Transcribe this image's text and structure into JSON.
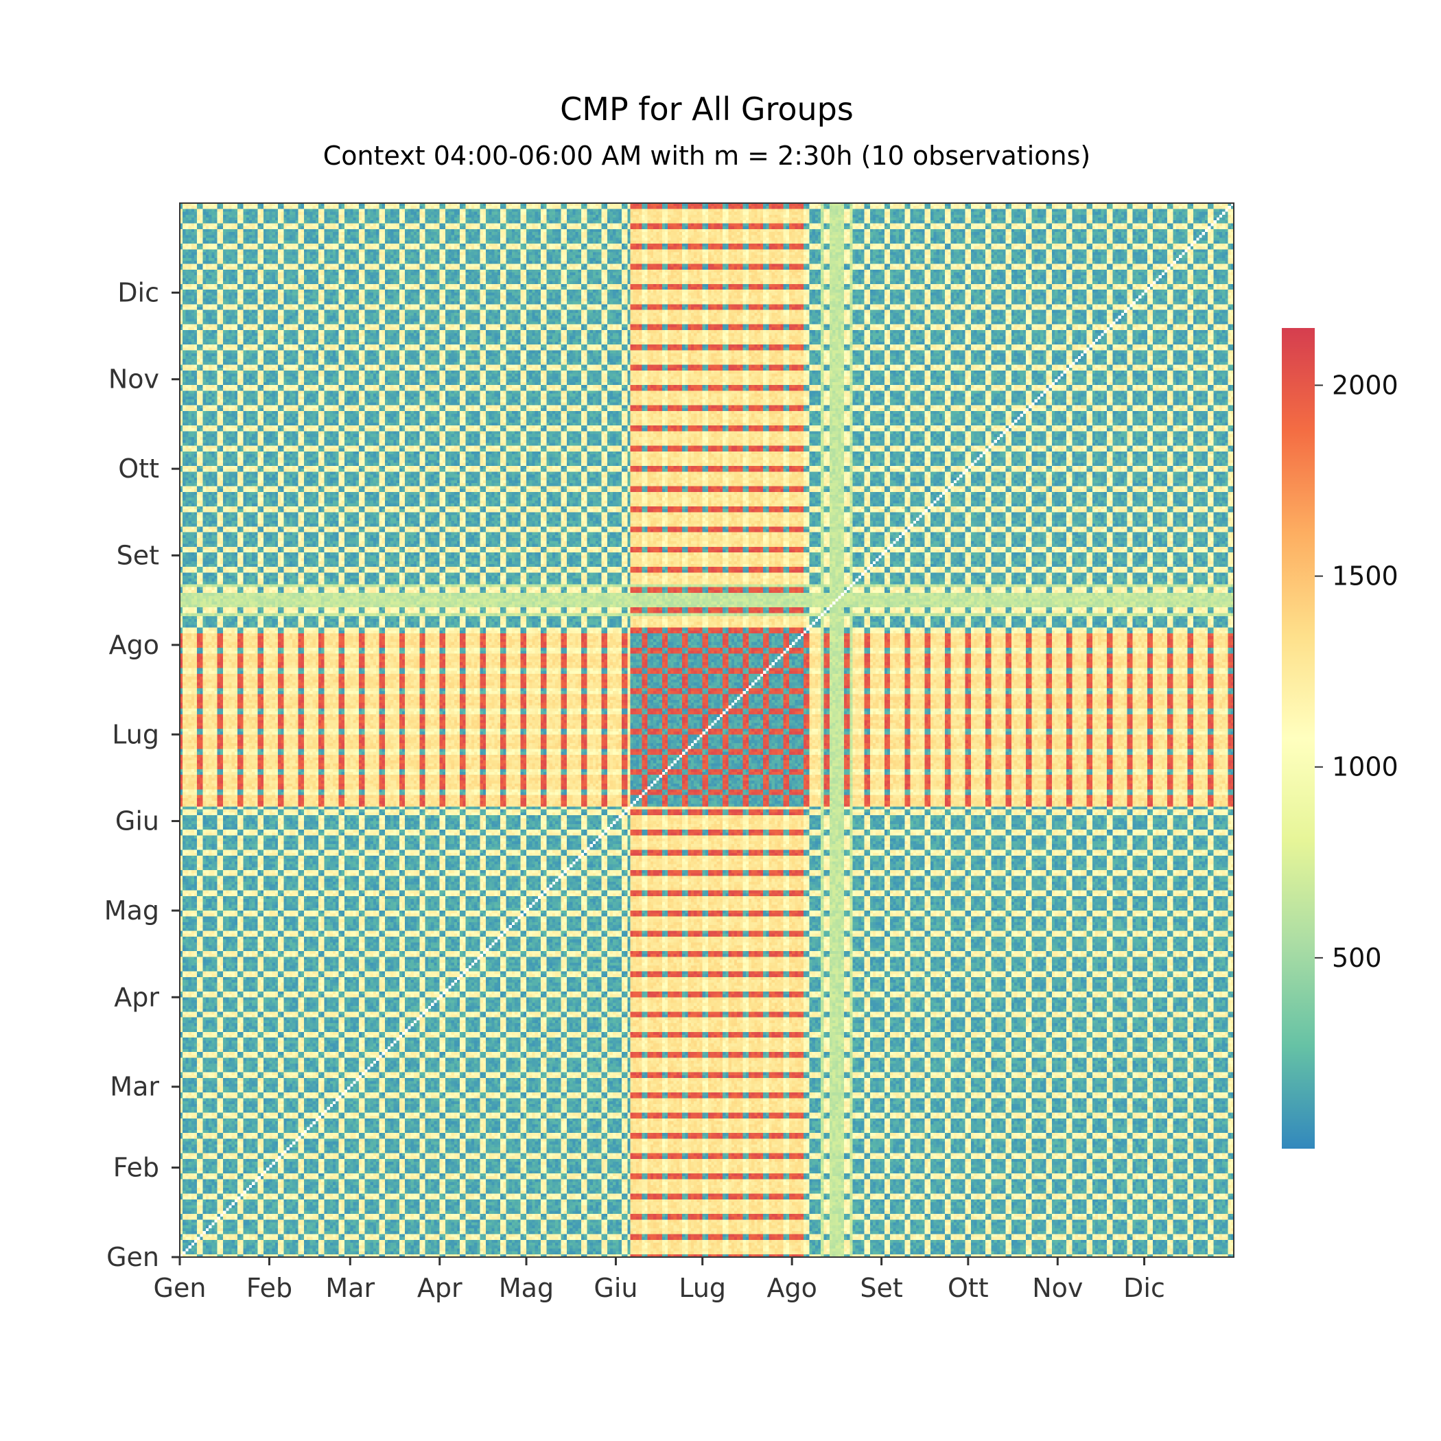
{
  "chart_data": {
    "type": "heatmap",
    "title": "CMP for All Groups",
    "subtitle": "Context 04:00-06:00 AM with m = 2:30h (10 observations)",
    "x_tick_labels": [
      "Gen",
      "Feb",
      "Mar",
      "Apr",
      "Mag",
      "Giu",
      "Lug",
      "Ago",
      "Set",
      "Ott",
      "Nov",
      "Dic"
    ],
    "y_tick_labels": [
      "Gen",
      "Feb",
      "Mar",
      "Apr",
      "Mag",
      "Giu",
      "Lug",
      "Ago",
      "Set",
      "Ott",
      "Nov",
      "Dic"
    ],
    "month_start_day": [
      0,
      31,
      59,
      90,
      120,
      151,
      181,
      212,
      243,
      273,
      304,
      334
    ],
    "days": 365,
    "colorbar": {
      "min": 0,
      "max": 2150,
      "ticks": [
        500,
        1000,
        1500,
        2000
      ],
      "colormap": "Spectral_r",
      "stops": [
        "#3288bd",
        "#66c2a5",
        "#abdda4",
        "#e6f598",
        "#ffffbf",
        "#fee08b",
        "#fdae61",
        "#f46d43",
        "#d53e4f"
      ]
    },
    "value_summary": {
      "diagonal": "white (self-comparison, masked)",
      "weekday_weekday": 150,
      "weekend_weekend": 150,
      "weekday_weekend_low_season": 1150,
      "weekend_vs_summer_weekday": 2000,
      "summer_weekday_vs_weekday": 1300,
      "august_holiday_band": 650
    }
  }
}
